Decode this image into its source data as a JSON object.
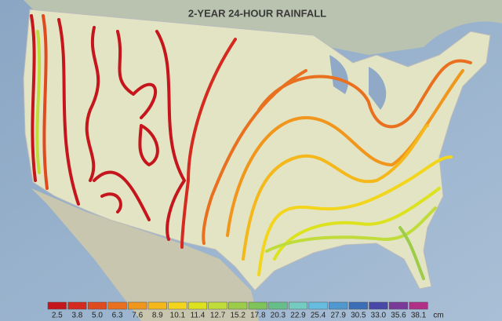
{
  "title": "2-YEAR 24-HOUR RAINFALL",
  "legend": {
    "unit": "cm",
    "items": [
      {
        "label": "2.5",
        "color": "#c4161c"
      },
      {
        "label": "3.8",
        "color": "#d42a1f"
      },
      {
        "label": "5.0",
        "color": "#e04a1f"
      },
      {
        "label": "6.3",
        "color": "#e8701f"
      },
      {
        "label": "7.6",
        "color": "#f0961c"
      },
      {
        "label": "8.9",
        "color": "#f4b81a"
      },
      {
        "label": "10.1",
        "color": "#f2d51c"
      },
      {
        "label": "11.4",
        "color": "#dde21e"
      },
      {
        "label": "12.7",
        "color": "#bfdc3a"
      },
      {
        "label": "15.2",
        "color": "#9ccc49"
      },
      {
        "label": "17.8",
        "color": "#7ec45a"
      },
      {
        "label": "20.3",
        "color": "#66bf88"
      },
      {
        "label": "22.9",
        "color": "#74cbbf"
      },
      {
        "label": "25.4",
        "color": "#66bde0"
      },
      {
        "label": "27.9",
        "color": "#4f98d0"
      },
      {
        "label": "30.5",
        "color": "#3a6fb8"
      },
      {
        "label": "33.0",
        "color": "#4848a8"
      },
      {
        "label": "35.6",
        "color": "#7a3a9a"
      },
      {
        "label": "38.1",
        "color": "#b03088"
      }
    ]
  }
}
